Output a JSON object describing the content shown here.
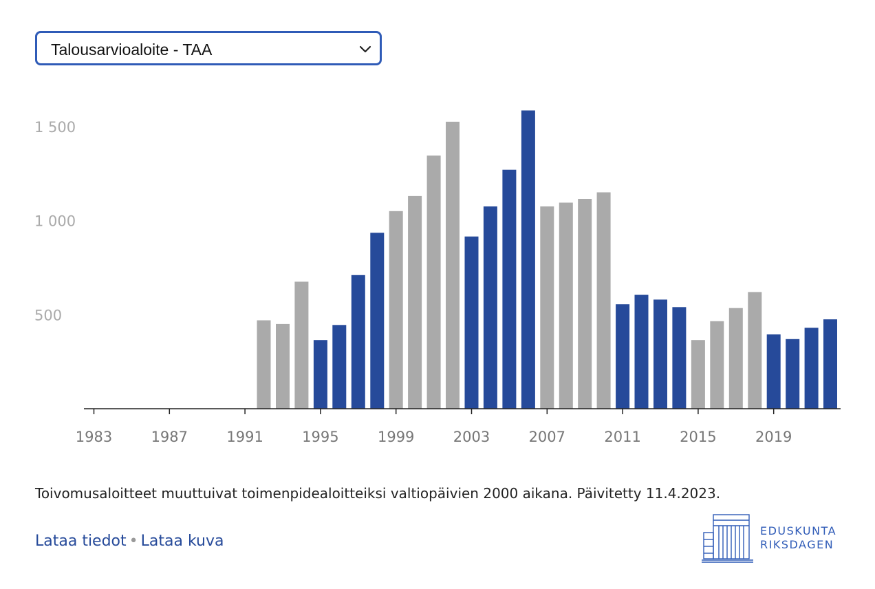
{
  "selector": {
    "value": "Talousarvioaloite - TAA"
  },
  "chart_data": {
    "type": "bar",
    "title": "",
    "xlabel": "",
    "ylabel": "",
    "x_tick_labels": [
      "1983",
      "1987",
      "1991",
      "1995",
      "1999",
      "2003",
      "2007",
      "2011",
      "2015",
      "2019"
    ],
    "x_range": [
      1983,
      2022
    ],
    "y_ticks": [
      500,
      1000,
      1500
    ],
    "y_tick_labels": [
      "500",
      "1 000",
      "1 500"
    ],
    "ylim": [
      0,
      1600
    ],
    "grid": false,
    "bars": [
      {
        "year": 1992,
        "value": 470,
        "color": "#aaaaaa"
      },
      {
        "year": 1993,
        "value": 450,
        "color": "#aaaaaa"
      },
      {
        "year": 1994,
        "value": 675,
        "color": "#aaaaaa"
      },
      {
        "year": 1995,
        "value": 365,
        "color": "#264a9a"
      },
      {
        "year": 1996,
        "value": 445,
        "color": "#264a9a"
      },
      {
        "year": 1997,
        "value": 710,
        "color": "#264a9a"
      },
      {
        "year": 1998,
        "value": 935,
        "color": "#264a9a"
      },
      {
        "year": 1999,
        "value": 1050,
        "color": "#aaaaaa"
      },
      {
        "year": 2000,
        "value": 1130,
        "color": "#aaaaaa"
      },
      {
        "year": 2001,
        "value": 1345,
        "color": "#aaaaaa"
      },
      {
        "year": 2002,
        "value": 1525,
        "color": "#aaaaaa"
      },
      {
        "year": 2003,
        "value": 915,
        "color": "#264a9a"
      },
      {
        "year": 2004,
        "value": 1075,
        "color": "#264a9a"
      },
      {
        "year": 2005,
        "value": 1270,
        "color": "#264a9a"
      },
      {
        "year": 2006,
        "value": 1585,
        "color": "#264a9a"
      },
      {
        "year": 2007,
        "value": 1075,
        "color": "#aaaaaa"
      },
      {
        "year": 2008,
        "value": 1095,
        "color": "#aaaaaa"
      },
      {
        "year": 2009,
        "value": 1115,
        "color": "#aaaaaa"
      },
      {
        "year": 2010,
        "value": 1150,
        "color": "#aaaaaa"
      },
      {
        "year": 2011,
        "value": 555,
        "color": "#264a9a"
      },
      {
        "year": 2012,
        "value": 605,
        "color": "#264a9a"
      },
      {
        "year": 2013,
        "value": 580,
        "color": "#264a9a"
      },
      {
        "year": 2014,
        "value": 540,
        "color": "#264a9a"
      },
      {
        "year": 2015,
        "value": 365,
        "color": "#aaaaaa"
      },
      {
        "year": 2016,
        "value": 465,
        "color": "#aaaaaa"
      },
      {
        "year": 2017,
        "value": 535,
        "color": "#aaaaaa"
      },
      {
        "year": 2018,
        "value": 620,
        "color": "#aaaaaa"
      },
      {
        "year": 2019,
        "value": 395,
        "color": "#264a9a"
      },
      {
        "year": 2020,
        "value": 370,
        "color": "#264a9a"
      },
      {
        "year": 2021,
        "value": 430,
        "color": "#264a9a"
      },
      {
        "year": 2022,
        "value": 475,
        "color": "#264a9a"
      }
    ]
  },
  "footnote": "Toivomusaloitteet muuttuivat toimenpidealoitteiksi valtiopäivien 2000 aikana. Päivitetty 11.4.2023.",
  "links": {
    "download_data": "Lataa tiedot",
    "separator": "•",
    "download_image": "Lataa kuva"
  },
  "logo": {
    "line1": "EDUSKUNTA",
    "line2": "RIKSDAGEN",
    "color": "#2f5bb7"
  }
}
